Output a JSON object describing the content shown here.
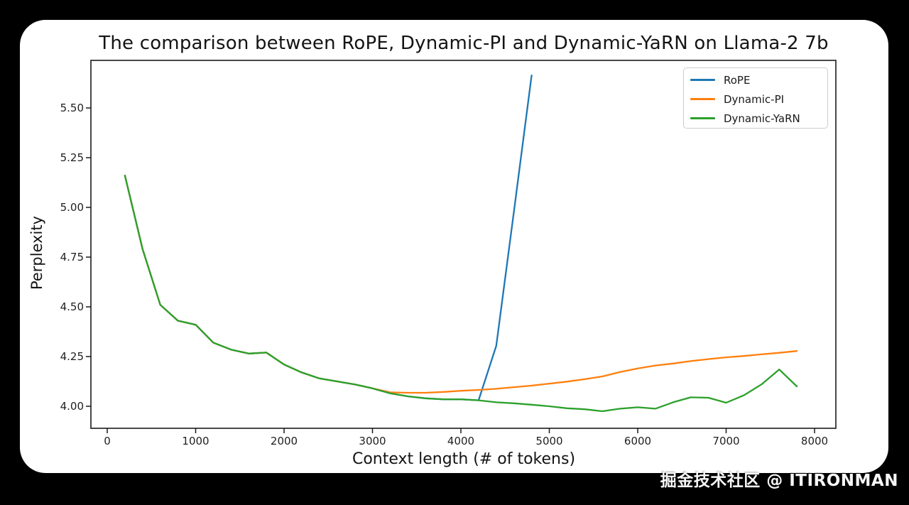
{
  "watermark": "掘金技术社区 @ ITIRONMAN",
  "chart_data": {
    "type": "line",
    "title": "The comparison between RoPE, Dynamic-PI and Dynamic-YaRN on Llama-2 7b",
    "xlabel": "Context length (# of tokens)",
    "ylabel": "Perplexity",
    "xlim": [
      -185,
      8240
    ],
    "ylim": [
      3.89,
      5.74
    ],
    "grid": false,
    "legend_position": "upper right",
    "x_ticks": {
      "values": [
        0,
        1000,
        2000,
        3000,
        4000,
        5000,
        6000,
        7000,
        8000
      ],
      "labels": [
        "0",
        "1000",
        "2000",
        "3000",
        "4000",
        "5000",
        "6000",
        "7000",
        "8000"
      ]
    },
    "y_ticks": {
      "values": [
        4.0,
        4.25,
        4.5,
        4.75,
        5.0,
        5.25,
        5.5
      ],
      "labels": [
        "4.00",
        "4.25",
        "4.50",
        "4.75",
        "5.00",
        "5.25",
        "5.50"
      ]
    },
    "series": [
      {
        "name": "RoPE",
        "color": "#1f77b4",
        "x": [
          200,
          400,
          600,
          800,
          1000,
          1200,
          1400,
          1600,
          1800,
          2000,
          2200,
          2400,
          2600,
          2800,
          3000,
          3200,
          3400,
          3600,
          3800,
          4000,
          4200,
          4400,
          4600,
          4800
        ],
        "values": [
          5.16,
          4.79,
          4.51,
          4.43,
          4.41,
          4.32,
          4.285,
          4.265,
          4.27,
          4.21,
          4.17,
          4.14,
          4.125,
          4.11,
          4.09,
          4.065,
          4.05,
          4.04,
          4.035,
          4.035,
          4.03,
          4.304,
          4.98,
          5.664
        ]
      },
      {
        "name": "Dynamic-PI",
        "color": "#ff7f0e",
        "x": [
          200,
          400,
          600,
          800,
          1000,
          1200,
          1400,
          1600,
          1800,
          2000,
          2200,
          2400,
          2600,
          2800,
          3000,
          3200,
          3400,
          3600,
          3800,
          4000,
          4200,
          4400,
          4600,
          4800,
          5000,
          5200,
          5400,
          5600,
          5800,
          6000,
          6200,
          6400,
          6600,
          6800,
          7000,
          7200,
          7400,
          7600,
          7800
        ],
        "values": [
          5.16,
          4.79,
          4.51,
          4.43,
          4.41,
          4.32,
          4.285,
          4.265,
          4.27,
          4.21,
          4.17,
          4.14,
          4.125,
          4.11,
          4.09,
          4.07,
          4.068,
          4.068,
          4.072,
          4.078,
          4.082,
          4.088,
          4.096,
          4.104,
          4.114,
          4.124,
          4.136,
          4.15,
          4.172,
          4.19,
          4.205,
          4.215,
          4.227,
          4.237,
          4.246,
          4.253,
          4.261,
          4.269,
          4.278
        ]
      },
      {
        "name": "Dynamic-YaRN",
        "color": "#2ca02c",
        "x": [
          200,
          400,
          600,
          800,
          1000,
          1200,
          1400,
          1600,
          1800,
          2000,
          2200,
          2400,
          2600,
          2800,
          3000,
          3200,
          3400,
          3600,
          3800,
          4000,
          4200,
          4400,
          4600,
          4800,
          5000,
          5200,
          5400,
          5600,
          5800,
          6000,
          6200,
          6400,
          6600,
          6800,
          7000,
          7200,
          7400,
          7600,
          7800
        ],
        "values": [
          5.16,
          4.79,
          4.51,
          4.43,
          4.41,
          4.32,
          4.285,
          4.265,
          4.27,
          4.21,
          4.17,
          4.14,
          4.125,
          4.11,
          4.09,
          4.065,
          4.05,
          4.04,
          4.035,
          4.035,
          4.03,
          4.02,
          4.015,
          4.008,
          4.0,
          3.99,
          3.985,
          3.975,
          3.988,
          3.995,
          3.988,
          4.02,
          4.045,
          4.043,
          4.018,
          4.055,
          4.11,
          4.185,
          4.1
        ]
      }
    ]
  }
}
